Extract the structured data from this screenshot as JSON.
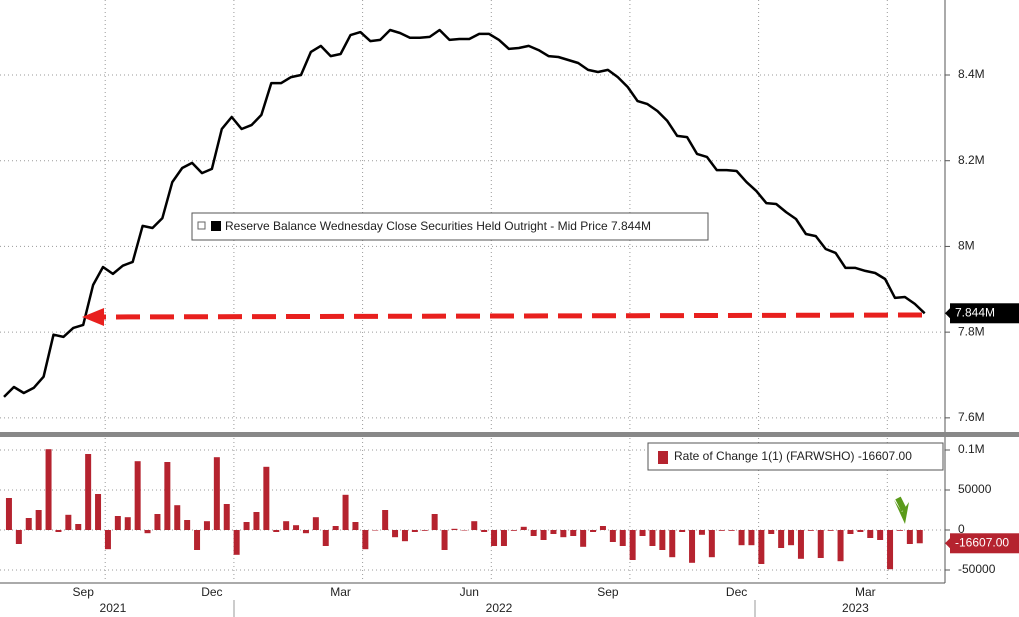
{
  "chart_data": [
    {
      "type": "line",
      "series": [
        {
          "name": "Reserve Balance Wednesday Close Securities Held Outright - Mid Price",
          "color": "#000000",
          "values": [
            7.649,
            7.672,
            7.658,
            7.67,
            7.696,
            7.794,
            7.789,
            7.81,
            7.817,
            7.91,
            7.952,
            7.936,
            7.955,
            7.964,
            8.048,
            8.043,
            8.066,
            8.15,
            8.183,
            8.195,
            8.171,
            8.181,
            8.274,
            8.302,
            8.274,
            8.283,
            8.307,
            8.381,
            8.381,
            8.395,
            8.4,
            8.454,
            8.468,
            8.444,
            8.449,
            8.493,
            8.5,
            8.479,
            8.482,
            8.505,
            8.498,
            8.487,
            8.487,
            8.489,
            8.505,
            8.482,
            8.484,
            8.484,
            8.496,
            8.496,
            8.482,
            8.461,
            8.463,
            8.468,
            8.458,
            8.444,
            8.442,
            8.435,
            8.428,
            8.412,
            8.407,
            8.412,
            8.395,
            8.372,
            8.339,
            8.332,
            8.316,
            8.293,
            8.258,
            8.255,
            8.216,
            8.209,
            8.178,
            8.178,
            8.176,
            8.15,
            8.129,
            8.101,
            8.099,
            8.08,
            8.064,
            8.029,
            8.024,
            7.994,
            7.985,
            7.95,
            7.95,
            7.943,
            7.938,
            7.924,
            7.88,
            7.882,
            7.866,
            7.844
          ],
          "last_value_label": "7.844M"
        }
      ],
      "ylim": [
        7.567,
        8.575
      ],
      "yticks": [
        {
          "value": 7.6,
          "label": "7.6M"
        },
        {
          "value": 7.8,
          "label": "7.8M"
        },
        {
          "value": 8,
          "label": "8M"
        },
        {
          "value": 8.2,
          "label": "8.2M"
        },
        {
          "value": 8.4,
          "label": "8.4M"
        }
      ],
      "grid": true
    },
    {
      "type": "bar",
      "categories": [
        null,
        null,
        null,
        null,
        null,
        null,
        null,
        null,
        "Sep",
        null,
        null,
        null,
        null,
        null,
        null,
        null,
        null,
        null,
        null,
        null,
        null,
        "Dec",
        null,
        null,
        null,
        null,
        null,
        null,
        null,
        null,
        null,
        null,
        null,
        null,
        "Mar",
        null,
        null,
        null,
        null,
        null,
        null,
        null,
        null,
        null,
        null,
        null,
        null,
        "Jun",
        null,
        null,
        null,
        null,
        null,
        null,
        null,
        null,
        null,
        null,
        null,
        null,
        null,
        "Sep",
        null,
        null,
        null,
        null,
        null,
        null,
        null,
        null,
        null,
        null,
        null,
        null,
        "Dec",
        null,
        null,
        null,
        null,
        null,
        null,
        null,
        null,
        null,
        null,
        null,
        null,
        "Mar",
        null,
        null,
        null,
        null,
        null,
        null
      ],
      "years": [
        null,
        null,
        null,
        null,
        null,
        null,
        null,
        null,
        null,
        null,
        null,
        "2021",
        null,
        null,
        null,
        null,
        null,
        null,
        null,
        null,
        null,
        null,
        null,
        null,
        null,
        null,
        null,
        null,
        null,
        null,
        null,
        null,
        null,
        null,
        null,
        null,
        null,
        null,
        null,
        null,
        null,
        null,
        null,
        null,
        null,
        null,
        null,
        null,
        null,
        null,
        "2022",
        null,
        null,
        null,
        null,
        null,
        null,
        null,
        null,
        null,
        null,
        null,
        null,
        null,
        null,
        null,
        null,
        null,
        null,
        null,
        null,
        null,
        null,
        null,
        null,
        null,
        null,
        null,
        null,
        null,
        null,
        null,
        null,
        null,
        null,
        null,
        "2023",
        null,
        null,
        null,
        null,
        null,
        null,
        null
      ],
      "series": [
        {
          "name": "Rate of Change 1(1) (FARWSHO)",
          "color": "#b5232f",
          "values": [
            null,
            40000,
            -17500,
            15000,
            25000,
            101000,
            -2500,
            19000,
            7500,
            95000,
            45000,
            -24000,
            17500,
            16000,
            86000,
            -4000,
            20000,
            85000,
            31000,
            12500,
            -25000,
            11000,
            91000,
            32500,
            -31000,
            10000,
            22500,
            79000,
            -2500,
            11000,
            6000,
            -4000,
            16000,
            -20000,
            5000,
            44000,
            10000,
            -24000,
            0,
            25000,
            -9000,
            -14000,
            -2500,
            -1000,
            20000,
            -25000,
            1500,
            0,
            11000,
            -2500,
            -20000,
            -20000,
            -1000,
            4000,
            -7500,
            -12500,
            -5000,
            -9000,
            -7500,
            -21000,
            -2500,
            5000,
            -15000,
            -20000,
            -37500,
            -7500,
            -20000,
            -25000,
            -34000,
            -2500,
            -41000,
            -6000,
            -34000,
            -1000,
            -1000,
            -19000,
            -19000,
            -42500,
            -5000,
            -22500,
            -19000,
            -36000,
            -1000,
            -35000,
            -1000,
            -39000,
            -5000,
            -2500,
            -10000,
            -12500,
            -49000,
            -1000,
            -17500,
            -16607
          ],
          "last_value_label": "-16607.00"
        }
      ],
      "ylim": [
        -65000,
        115000
      ],
      "yticks": [
        -50000,
        0,
        50000,
        {
          "value": 100000,
          "label": "0.1M"
        }
      ],
      "grid": true
    }
  ]
}
